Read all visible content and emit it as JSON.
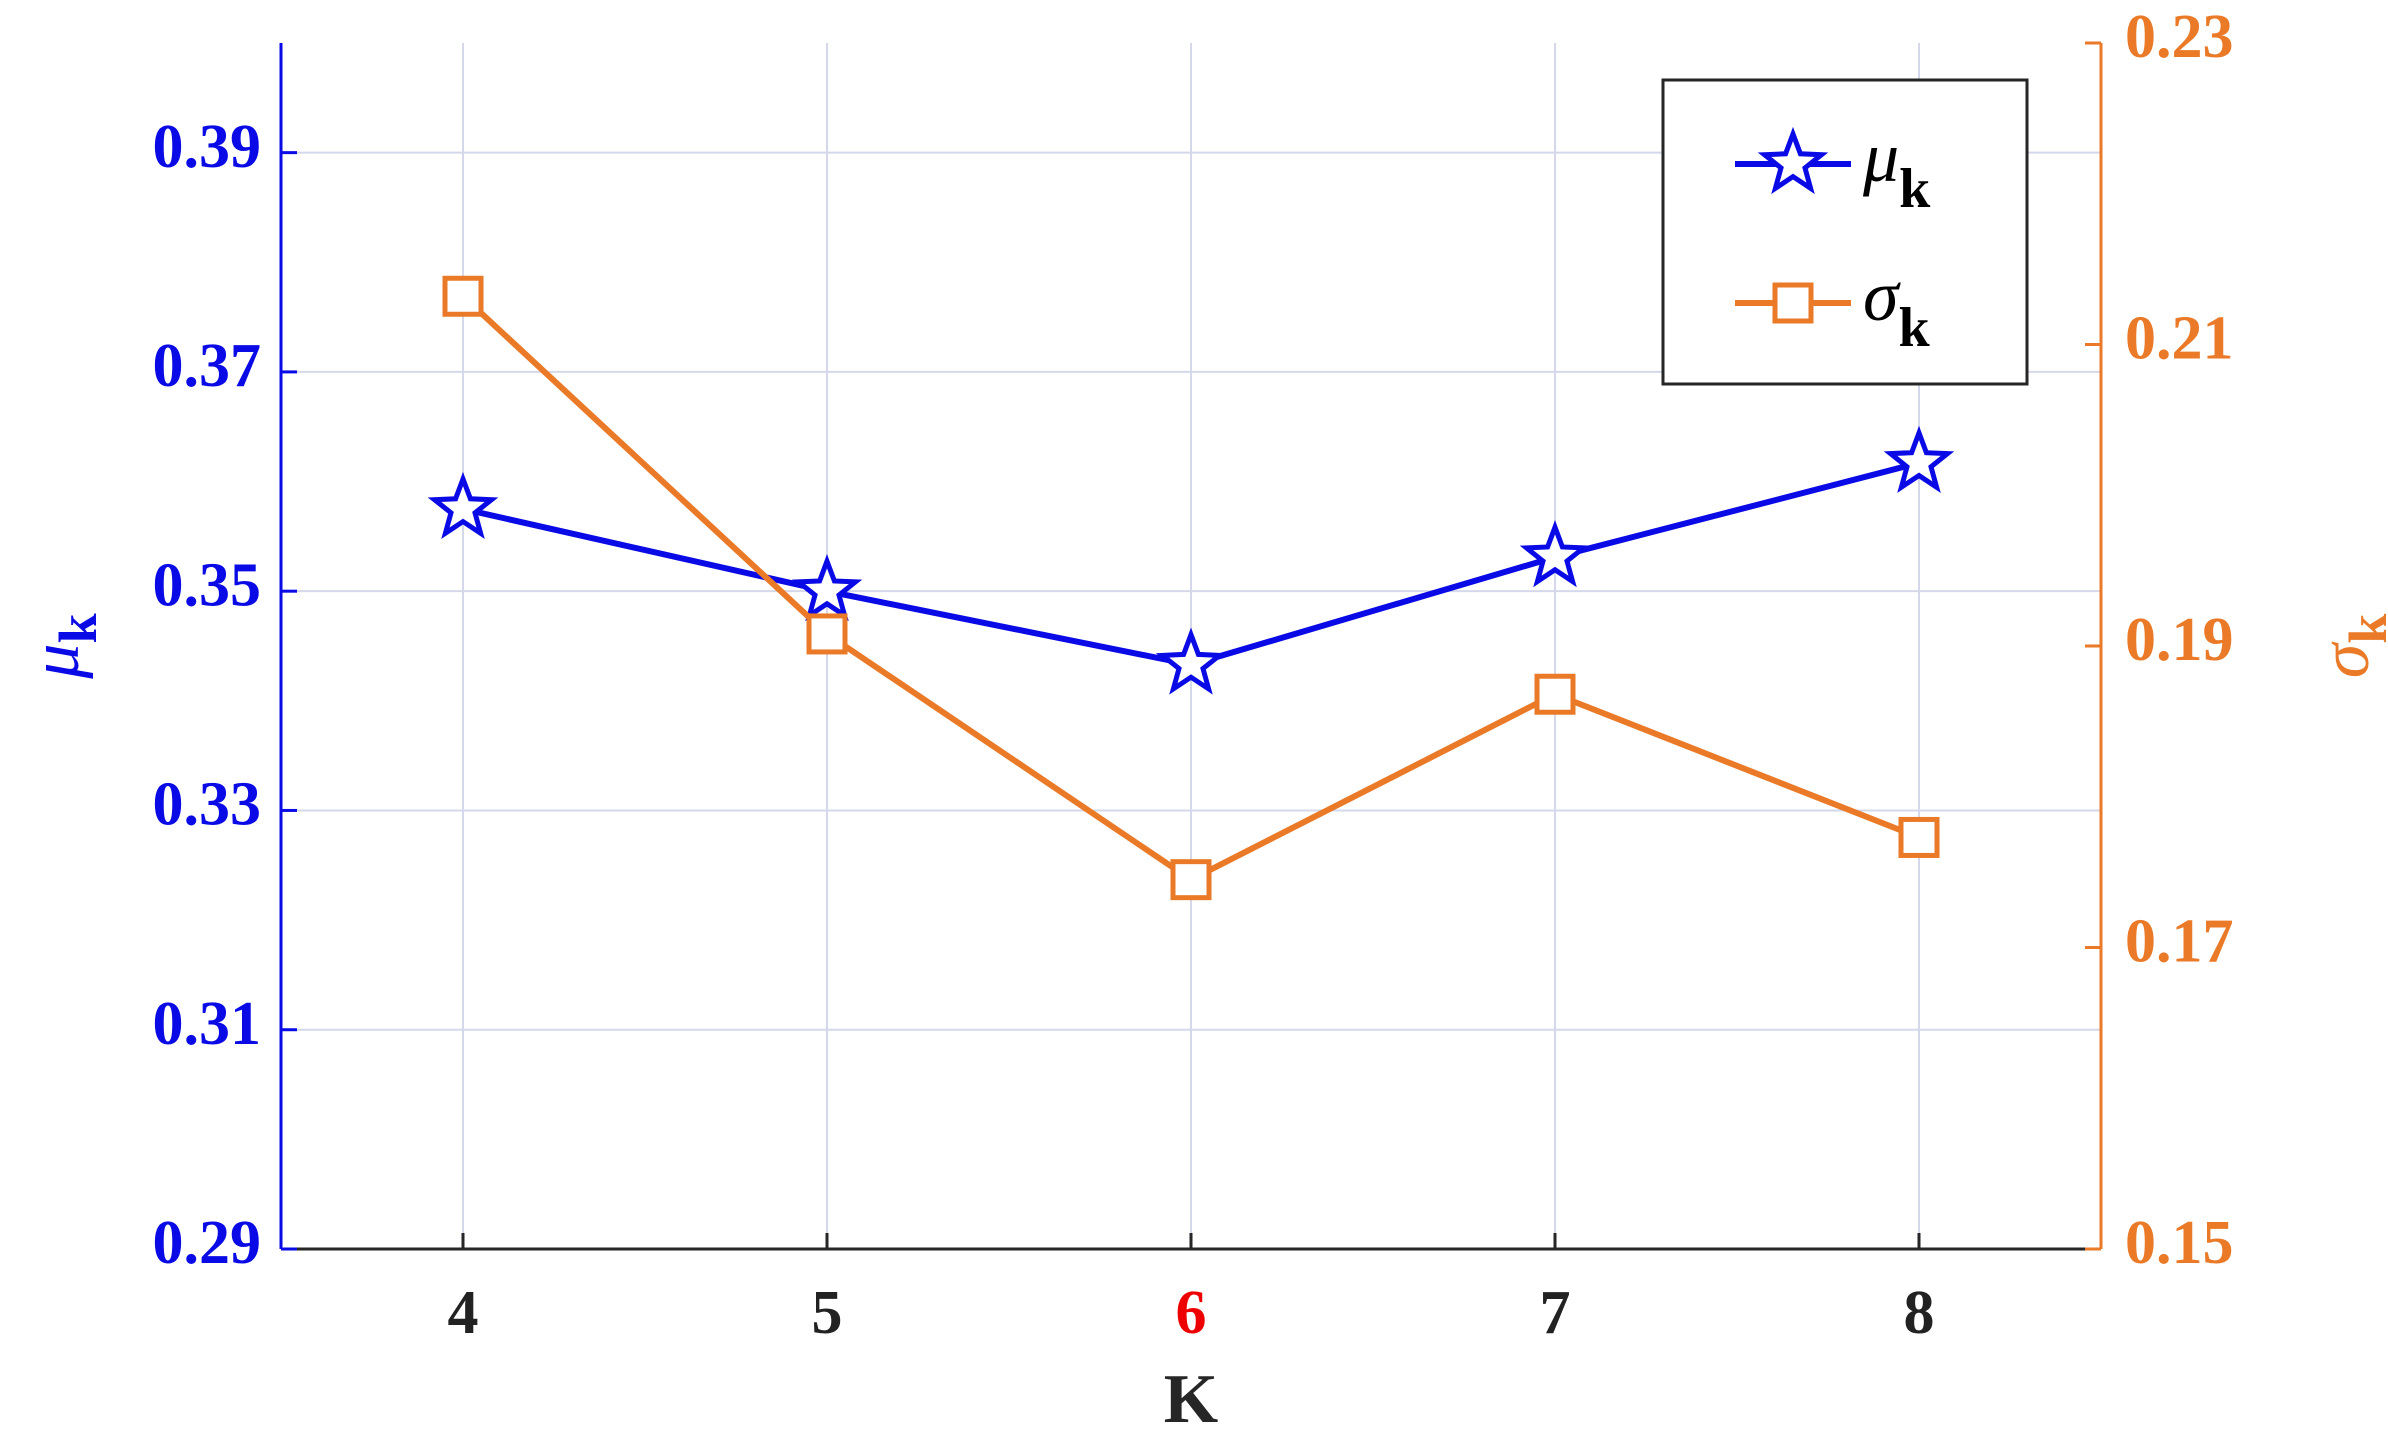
{
  "chart_data": {
    "type": "line",
    "x": [
      4,
      5,
      6,
      7,
      8
    ],
    "xlim": [
      3.5,
      8.5
    ],
    "xticks": [
      4,
      5,
      6,
      7,
      8
    ],
    "xtick_colors": [
      "#222222",
      "#222222",
      "#ee0000",
      "#222222",
      "#222222"
    ],
    "xlabel": "K",
    "ylabel": "μ",
    "ylabel_sub": "k",
    "y2label": "σ",
    "y2label_sub": "k",
    "ylim": [
      0.29,
      0.4
    ],
    "yticks": [
      0.29,
      0.31,
      0.33,
      0.35,
      0.37,
      0.39
    ],
    "y2lim": [
      0.15,
      0.23
    ],
    "y2ticks": [
      0.15,
      0.17,
      0.19,
      0.21,
      0.23
    ],
    "grid": true,
    "legend": "upper right",
    "series": [
      {
        "name": "μ",
        "name_sub": "k",
        "color": "#0a0ae6",
        "marker": "star",
        "values": [
          0.3575,
          0.35,
          0.3433,
          0.3531,
          0.3617
        ]
      },
      {
        "name": "σ",
        "name_sub": "k",
        "color": "#ea7a28",
        "marker": "square",
        "axis": "y2",
        "values": [
          0.2132,
          0.1908,
          0.1745,
          0.1868,
          0.1773
        ]
      }
    ]
  }
}
